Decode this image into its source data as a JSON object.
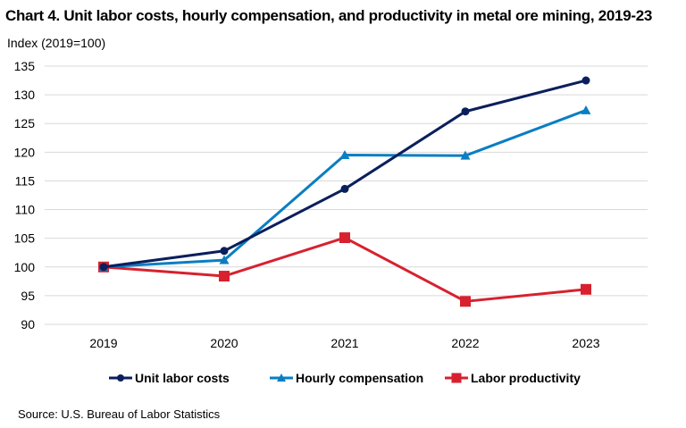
{
  "chart_data": {
    "type": "line",
    "title": "Chart 4. Unit labor costs, hourly compensation, and productivity in metal ore mining, 2019-23",
    "xlabel": "",
    "ylabel": "Index (2019=100)",
    "categories": [
      "2019",
      "2020",
      "2021",
      "2022",
      "2023"
    ],
    "ylim": [
      90,
      135
    ],
    "yticks": [
      90,
      95,
      100,
      105,
      110,
      115,
      120,
      125,
      130,
      135
    ],
    "grid": true,
    "legend_position": "bottom",
    "series": [
      {
        "name": "Unit labor costs",
        "color": "#0b1f5c",
        "marker": "circle",
        "values": [
          100.0,
          102.8,
          113.6,
          127.1,
          132.5
        ]
      },
      {
        "name": "Hourly compensation",
        "color": "#0a7ec2",
        "marker": "triangle",
        "values": [
          100.0,
          101.2,
          119.5,
          119.4,
          127.3
        ]
      },
      {
        "name": "Labor productivity",
        "color": "#d7212f",
        "marker": "square",
        "values": [
          100.0,
          98.4,
          105.1,
          94.0,
          96.1
        ]
      }
    ]
  },
  "source": "Source: U.S. Bureau of Labor Statistics"
}
